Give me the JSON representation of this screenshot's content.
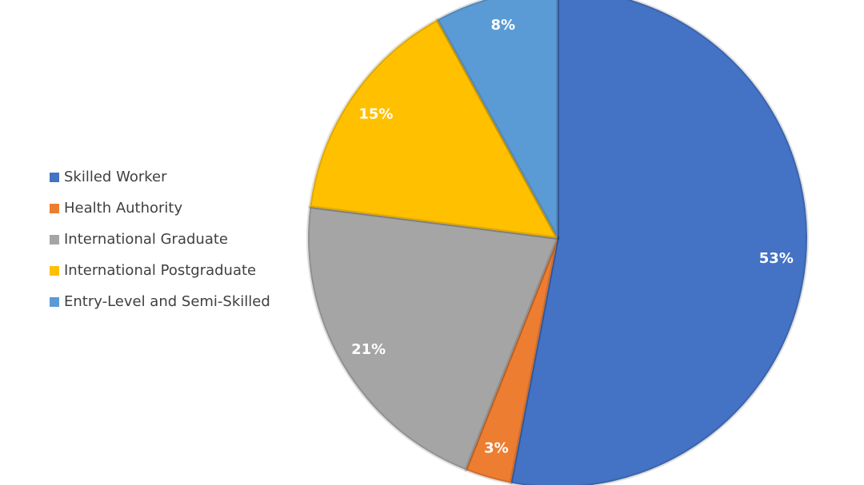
{
  "chart_data": {
    "type": "pie",
    "categories": [
      "Skilled Worker",
      "Health Authority",
      "International Graduate",
      "International Postgraduate",
      "Entry-Level and Semi-Skilled"
    ],
    "values": [
      53,
      3,
      21,
      15,
      8
    ],
    "value_labels": [
      "53%",
      "3%",
      "21%",
      "15%",
      "8%"
    ],
    "colors": [
      "#4472c4",
      "#ed7d31",
      "#a5a5a5",
      "#ffc000",
      "#5b9bd5"
    ],
    "legend": "left"
  }
}
